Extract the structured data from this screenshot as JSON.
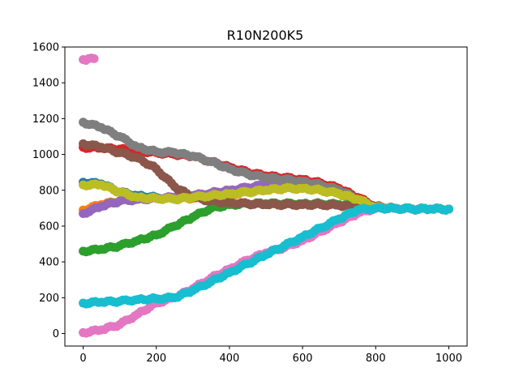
{
  "chart_data": {
    "type": "scatter",
    "title": "R10N200K5",
    "xlabel": "",
    "ylabel": "",
    "xlim": [
      -50,
      1050
    ],
    "ylim": [
      -70,
      1600
    ],
    "xticks": [
      0,
      200,
      400,
      600,
      800,
      1000
    ],
    "yticks": [
      0,
      200,
      400,
      600,
      800,
      1000,
      1200,
      1400,
      1600
    ],
    "grid": false,
    "legend": "none",
    "marker": "circle",
    "series": [
      {
        "name": "series-1",
        "color": "#1f77b4",
        "points": [
          [
            0,
            845
          ],
          [
            50,
            835
          ],
          [
            100,
            790
          ],
          [
            150,
            770
          ],
          [
            200,
            760
          ],
          [
            250,
            750
          ],
          [
            300,
            760
          ],
          [
            350,
            780
          ],
          [
            400,
            790
          ],
          [
            450,
            800
          ],
          [
            500,
            810
          ],
          [
            550,
            820
          ],
          [
            600,
            830
          ],
          [
            650,
            820
          ],
          [
            700,
            790
          ],
          [
            750,
            750
          ],
          [
            800,
            705
          ],
          [
            850,
            700
          ],
          [
            900,
            695
          ],
          [
            950,
            695
          ],
          [
            1000,
            695
          ]
        ]
      },
      {
        "name": "series-2",
        "color": "#ff7f0e",
        "points": [
          [
            0,
            690
          ],
          [
            50,
            720
          ],
          [
            100,
            740
          ],
          [
            150,
            750
          ],
          [
            200,
            755
          ],
          [
            250,
            755
          ],
          [
            300,
            755
          ],
          [
            350,
            760
          ],
          [
            400,
            775
          ],
          [
            450,
            790
          ],
          [
            500,
            800
          ],
          [
            550,
            810
          ],
          [
            600,
            815
          ],
          [
            650,
            800
          ],
          [
            700,
            780
          ],
          [
            750,
            740
          ],
          [
            800,
            705
          ],
          [
            850,
            700
          ],
          [
            900,
            695
          ],
          [
            950,
            695
          ],
          [
            1000,
            695
          ]
        ]
      },
      {
        "name": "series-3",
        "color": "#2ca02c",
        "points": [
          [
            0,
            460
          ],
          [
            50,
            470
          ],
          [
            100,
            490
          ],
          [
            150,
            520
          ],
          [
            200,
            550
          ],
          [
            250,
            600
          ],
          [
            300,
            650
          ],
          [
            350,
            700
          ],
          [
            400,
            720
          ],
          [
            450,
            725
          ],
          [
            500,
            725
          ],
          [
            550,
            725
          ],
          [
            600,
            725
          ],
          [
            650,
            725
          ],
          [
            700,
            720
          ],
          [
            750,
            710
          ],
          [
            800,
            700
          ],
          [
            850,
            700
          ],
          [
            900,
            695
          ],
          [
            950,
            695
          ],
          [
            1000,
            695
          ]
        ]
      },
      {
        "name": "series-4",
        "color": "#d62728",
        "points": [
          [
            0,
            1040
          ],
          [
            50,
            1035
          ],
          [
            100,
            1030
          ],
          [
            150,
            1020
          ],
          [
            200,
            1010
          ],
          [
            250,
            1000
          ],
          [
            300,
            990
          ],
          [
            350,
            960
          ],
          [
            400,
            930
          ],
          [
            450,
            900
          ],
          [
            500,
            880
          ],
          [
            550,
            870
          ],
          [
            600,
            860
          ],
          [
            650,
            840
          ],
          [
            700,
            810
          ],
          [
            750,
            760
          ],
          [
            800,
            710
          ],
          [
            850,
            700
          ],
          [
            900,
            695
          ],
          [
            950,
            695
          ],
          [
            1000,
            695
          ]
        ]
      },
      {
        "name": "series-5",
        "color": "#9467bd",
        "points": [
          [
            0,
            670
          ],
          [
            50,
            710
          ],
          [
            100,
            740
          ],
          [
            150,
            750
          ],
          [
            200,
            755
          ],
          [
            250,
            760
          ],
          [
            300,
            770
          ],
          [
            350,
            785
          ],
          [
            400,
            800
          ],
          [
            450,
            815
          ],
          [
            500,
            830
          ],
          [
            550,
            840
          ],
          [
            600,
            830
          ],
          [
            650,
            820
          ],
          [
            700,
            790
          ],
          [
            750,
            750
          ],
          [
            800,
            705
          ],
          [
            850,
            700
          ],
          [
            900,
            695
          ],
          [
            950,
            695
          ],
          [
            1000,
            695
          ]
        ]
      },
      {
        "name": "series-6",
        "color": "#8c564b",
        "points": [
          [
            0,
            1060
          ],
          [
            50,
            1040
          ],
          [
            100,
            1010
          ],
          [
            150,
            980
          ],
          [
            200,
            920
          ],
          [
            250,
            820
          ],
          [
            300,
            760
          ],
          [
            350,
            740
          ],
          [
            400,
            730
          ],
          [
            450,
            725
          ],
          [
            500,
            720
          ],
          [
            550,
            720
          ],
          [
            600,
            720
          ],
          [
            650,
            720
          ],
          [
            700,
            715
          ],
          [
            750,
            705
          ],
          [
            800,
            700
          ],
          [
            850,
            700
          ],
          [
            900,
            695
          ],
          [
            950,
            695
          ],
          [
            1000,
            695
          ]
        ]
      },
      {
        "name": "series-7",
        "color": "#e377c2",
        "points": [
          [
            0,
            1530
          ],
          [
            30,
            1535
          ],
          [
            0,
            5
          ],
          [
            50,
            20
          ],
          [
            100,
            50
          ],
          [
            150,
            110
          ],
          [
            200,
            170
          ],
          [
            250,
            200
          ],
          [
            300,
            250
          ],
          [
            350,
            310
          ],
          [
            400,
            360
          ],
          [
            450,
            410
          ],
          [
            500,
            450
          ],
          [
            550,
            480
          ],
          [
            600,
            520
          ],
          [
            650,
            570
          ],
          [
            700,
            620
          ],
          [
            750,
            670
          ],
          [
            800,
            700
          ],
          [
            850,
            700
          ],
          [
            900,
            695
          ],
          [
            950,
            695
          ],
          [
            1000,
            695
          ]
        ]
      },
      {
        "name": "series-8",
        "color": "#7f7f7f",
        "points": [
          [
            0,
            1180
          ],
          [
            50,
            1150
          ],
          [
            100,
            1100
          ],
          [
            150,
            1040
          ],
          [
            200,
            1015
          ],
          [
            250,
            1010
          ],
          [
            300,
            990
          ],
          [
            350,
            960
          ],
          [
            400,
            920
          ],
          [
            450,
            890
          ],
          [
            500,
            870
          ],
          [
            550,
            860
          ],
          [
            600,
            850
          ],
          [
            650,
            830
          ],
          [
            700,
            800
          ],
          [
            750,
            750
          ],
          [
            800,
            705
          ],
          [
            850,
            700
          ],
          [
            900,
            695
          ],
          [
            950,
            695
          ],
          [
            1000,
            695
          ]
        ]
      },
      {
        "name": "series-9",
        "color": "#bcbd22",
        "points": [
          [
            0,
            830
          ],
          [
            50,
            830
          ],
          [
            100,
            790
          ],
          [
            150,
            760
          ],
          [
            200,
            755
          ],
          [
            250,
            750
          ],
          [
            300,
            760
          ],
          [
            350,
            770
          ],
          [
            400,
            780
          ],
          [
            450,
            790
          ],
          [
            500,
            800
          ],
          [
            550,
            810
          ],
          [
            600,
            810
          ],
          [
            650,
            800
          ],
          [
            700,
            780
          ],
          [
            750,
            750
          ],
          [
            800,
            705
          ],
          [
            850,
            700
          ],
          [
            900,
            695
          ],
          [
            950,
            695
          ],
          [
            1000,
            695
          ]
        ]
      },
      {
        "name": "series-10",
        "color": "#17becf",
        "points": [
          [
            0,
            170
          ],
          [
            50,
            175
          ],
          [
            100,
            180
          ],
          [
            150,
            190
          ],
          [
            200,
            195
          ],
          [
            250,
            200
          ],
          [
            300,
            240
          ],
          [
            350,
            290
          ],
          [
            400,
            340
          ],
          [
            450,
            390
          ],
          [
            500,
            440
          ],
          [
            550,
            490
          ],
          [
            600,
            540
          ],
          [
            650,
            590
          ],
          [
            700,
            640
          ],
          [
            750,
            690
          ],
          [
            800,
            700
          ],
          [
            850,
            700
          ],
          [
            900,
            695
          ],
          [
            950,
            695
          ],
          [
            1000,
            695
          ]
        ]
      }
    ]
  }
}
